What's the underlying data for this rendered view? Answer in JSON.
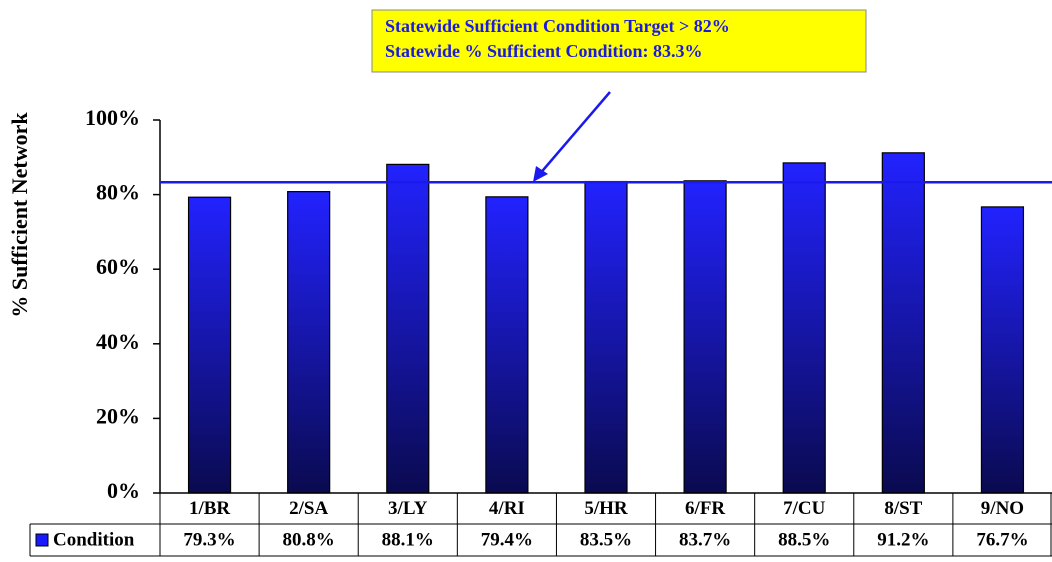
{
  "chart_data": {
    "type": "bar",
    "y_label": "% Sufficient Network",
    "categories": [
      "1/BR",
      "2/SA",
      "3/LY",
      "4/RI",
      "5/HR",
      "6/FR",
      "7/CU",
      "8/ST",
      "9/NO"
    ],
    "series": [
      {
        "name": "Condition",
        "color": "#1a1aff",
        "values": [
          79.3,
          80.8,
          88.1,
          79.4,
          83.5,
          83.7,
          88.5,
          91.2,
          76.7
        ],
        "value_labels": [
          "79.3%",
          "80.8%",
          "88.1%",
          "79.4%",
          "83.5%",
          "83.7%",
          "88.5%",
          "91.2%",
          "76.7%"
        ]
      }
    ],
    "ylim": [
      0,
      100
    ],
    "yticks": [
      {
        "value": 0,
        "label": "0%"
      },
      {
        "value": 20,
        "label": "20%"
      },
      {
        "value": 40,
        "label": "40%"
      },
      {
        "value": 60,
        "label": "60%"
      },
      {
        "value": 80,
        "label": "80%"
      },
      {
        "value": 100,
        "label": "100%"
      }
    ],
    "reference_line": 83.3,
    "reference_color": "#1a1aee",
    "annotations": [
      "Statewide Sufficient Condition Target > 82%",
      "Statewide % Sufficient Condition: 83.3%"
    ]
  }
}
